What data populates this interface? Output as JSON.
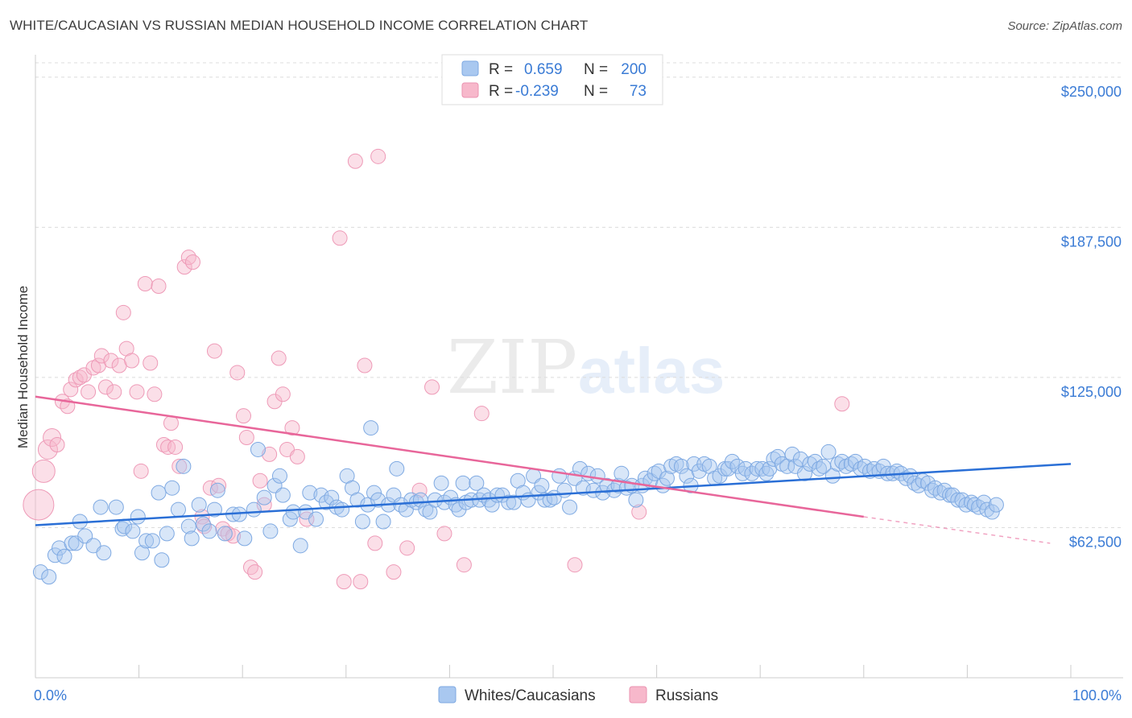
{
  "title": "WHITE/CAUCASIAN VS RUSSIAN MEDIAN HOUSEHOLD INCOME CORRELATION CHART",
  "source": "Source: ZipAtlas.com",
  "watermark": {
    "zip": "ZIP",
    "atlas": "atlas"
  },
  "colors": {
    "blue": "#3a7bd5",
    "blue_fill": "#a9c8f0",
    "blue_line": "#2a6fd6",
    "pink_fill": "#f7b8cb",
    "pink_line": "#e8669a",
    "grid": "#dcdcdc",
    "text_value": "#3a7bd5"
  },
  "legend_box": {
    "rows": [
      {
        "series": "Whites/Caucasians",
        "r_label": "R =",
        "r_value": "0.659",
        "n_label": "N =",
        "n_value": "200"
      },
      {
        "series": "Russians",
        "r_label": "R =",
        "r_value": "-0.239",
        "n_label": "N =",
        "n_value": "73"
      }
    ]
  },
  "chart_data": {
    "type": "scatter",
    "title": "WHITE/CAUCASIAN VS RUSSIAN MEDIAN HOUSEHOLD INCOME CORRELATION CHART",
    "xlabel": "",
    "ylabel": "Median Household Income",
    "xlim": [
      0,
      100
    ],
    "ylim": [
      0,
      262000
    ],
    "y_ticks": [
      {
        "value": 250000,
        "label": "$250,000"
      },
      {
        "value": 187500,
        "label": "$187,500"
      },
      {
        "value": 125000,
        "label": "$125,000"
      },
      {
        "value": 62500,
        "label": "$62,500"
      }
    ],
    "x_tick_labels": [
      {
        "value": 0,
        "label": "0.0%"
      },
      {
        "value": 100,
        "label": "100.0%"
      }
    ],
    "x_minor_ticks": [
      10,
      20,
      30,
      40,
      50,
      60,
      70,
      80,
      90,
      100
    ],
    "grid": true,
    "legend_position": "bottom-center",
    "series": [
      {
        "name": "Whites/Caucasians",
        "color": "blue",
        "trend": {
          "x0": 0,
          "y0": 63500,
          "x1": 100,
          "y1": 89000
        },
        "points": [
          [
            0.5,
            44000
          ],
          [
            1.3,
            42000
          ],
          [
            1.9,
            51000
          ],
          [
            2.3,
            54000
          ],
          [
            2.8,
            50500
          ],
          [
            3.5,
            56000
          ],
          [
            3.9,
            56000
          ],
          [
            4.3,
            65000
          ],
          [
            4.8,
            59000
          ],
          [
            5.6,
            55000
          ],
          [
            6.3,
            71000
          ],
          [
            6.6,
            52000
          ],
          [
            7.8,
            71000
          ],
          [
            8.4,
            62000
          ],
          [
            8.6,
            63000
          ],
          [
            9.4,
            61000
          ],
          [
            9.9,
            67000
          ],
          [
            10.3,
            52000
          ],
          [
            10.7,
            57000
          ],
          [
            11.3,
            57000
          ],
          [
            11.9,
            77000
          ],
          [
            12.2,
            49000
          ],
          [
            12.7,
            60000
          ],
          [
            13.2,
            79000
          ],
          [
            13.8,
            70000
          ],
          [
            14.3,
            88000
          ],
          [
            14.8,
            63000
          ],
          [
            15.1,
            58000
          ],
          [
            15.8,
            72000
          ],
          [
            16.2,
            64000
          ],
          [
            16.8,
            61000
          ],
          [
            17.3,
            70000
          ],
          [
            17.6,
            78000
          ],
          [
            18.3,
            60000
          ],
          [
            19.1,
            68000
          ],
          [
            19.7,
            68000
          ],
          [
            20.2,
            58000
          ],
          [
            21.1,
            70000
          ],
          [
            21.5,
            95000
          ],
          [
            22.1,
            75000
          ],
          [
            22.7,
            61000
          ],
          [
            23.1,
            80000
          ],
          [
            23.6,
            84000
          ],
          [
            23.9,
            76000
          ],
          [
            24.6,
            66000
          ],
          [
            24.9,
            69000
          ],
          [
            25.6,
            55000
          ],
          [
            26.1,
            69000
          ],
          [
            26.5,
            77000
          ],
          [
            27.1,
            66000
          ],
          [
            27.6,
            76000
          ],
          [
            28.1,
            73000
          ],
          [
            28.6,
            75000
          ],
          [
            29.1,
            71000
          ],
          [
            29.6,
            70000
          ],
          [
            30.1,
            84000
          ],
          [
            30.6,
            79000
          ],
          [
            31.1,
            74000
          ],
          [
            31.6,
            65000
          ],
          [
            32.1,
            72000
          ],
          [
            32.4,
            104000
          ],
          [
            32.7,
            77000
          ],
          [
            33.1,
            74000
          ],
          [
            33.6,
            65000
          ],
          [
            34.1,
            72000
          ],
          [
            34.6,
            76000
          ],
          [
            34.9,
            87000
          ],
          [
            35.3,
            72000
          ],
          [
            35.8,
            70000
          ],
          [
            36.3,
            74000
          ],
          [
            36.8,
            73000
          ],
          [
            37.2,
            74000
          ],
          [
            37.7,
            70000
          ],
          [
            38.1,
            69000
          ],
          [
            38.6,
            74000
          ],
          [
            39.2,
            81000
          ],
          [
            39.5,
            73000
          ],
          [
            40.1,
            75000
          ],
          [
            40.6,
            72000
          ],
          [
            40.9,
            70000
          ],
          [
            41.3,
            81000
          ],
          [
            41.6,
            73000
          ],
          [
            42.1,
            74000
          ],
          [
            42.6,
            81000
          ],
          [
            42.9,
            74000
          ],
          [
            43.3,
            76000
          ],
          [
            43.8,
            74000
          ],
          [
            44.1,
            72000
          ],
          [
            44.6,
            76000
          ],
          [
            45.1,
            76000
          ],
          [
            45.7,
            73000
          ],
          [
            46.2,
            73000
          ],
          [
            46.6,
            82000
          ],
          [
            47.1,
            77000
          ],
          [
            47.6,
            74000
          ],
          [
            48.1,
            84000
          ],
          [
            48.6,
            77000
          ],
          [
            48.9,
            80000
          ],
          [
            49.2,
            74000
          ],
          [
            49.7,
            74000
          ],
          [
            50.1,
            75000
          ],
          [
            50.6,
            84000
          ],
          [
            51.1,
            78000
          ],
          [
            51.6,
            71000
          ],
          [
            52.1,
            83000
          ],
          [
            52.6,
            87000
          ],
          [
            52.9,
            79000
          ],
          [
            53.4,
            85000
          ],
          [
            53.9,
            78000
          ],
          [
            54.3,
            84000
          ],
          [
            54.8,
            77000
          ],
          [
            55.2,
            80000
          ],
          [
            55.9,
            78000
          ],
          [
            56.3,
            80000
          ],
          [
            56.6,
            85000
          ],
          [
            57.1,
            79000
          ],
          [
            57.6,
            80000
          ],
          [
            58.0,
            74000
          ],
          [
            58.6,
            80000
          ],
          [
            58.9,
            83000
          ],
          [
            59.4,
            82000
          ],
          [
            59.8,
            85000
          ],
          [
            60.2,
            86000
          ],
          [
            60.6,
            80000
          ],
          [
            61.0,
            83000
          ],
          [
            61.4,
            88000
          ],
          [
            61.9,
            89000
          ],
          [
            62.4,
            88000
          ],
          [
            62.9,
            84000
          ],
          [
            63.3,
            80000
          ],
          [
            63.6,
            89000
          ],
          [
            64.1,
            86000
          ],
          [
            64.6,
            89000
          ],
          [
            65.1,
            88000
          ],
          [
            65.6,
            83000
          ],
          [
            66.1,
            84000
          ],
          [
            66.6,
            87000
          ],
          [
            66.9,
            87000
          ],
          [
            67.3,
            90000
          ],
          [
            67.8,
            88000
          ],
          [
            68.3,
            85000
          ],
          [
            68.6,
            87000
          ],
          [
            69.2,
            85000
          ],
          [
            69.7,
            87000
          ],
          [
            70.2,
            87000
          ],
          [
            70.6,
            85000
          ],
          [
            70.9,
            87000
          ],
          [
            71.3,
            91000
          ],
          [
            71.7,
            92000
          ],
          [
            72.1,
            89000
          ],
          [
            72.6,
            88000
          ],
          [
            73.1,
            93000
          ],
          [
            73.4,
            88000
          ],
          [
            73.9,
            91000
          ],
          [
            74.3,
            85000
          ],
          [
            74.8,
            89000
          ],
          [
            75.3,
            90000
          ],
          [
            75.7,
            87000
          ],
          [
            76.1,
            88000
          ],
          [
            76.6,
            94000
          ],
          [
            77.0,
            84000
          ],
          [
            77.5,
            89000
          ],
          [
            77.9,
            90000
          ],
          [
            78.3,
            88000
          ],
          [
            78.8,
            89000
          ],
          [
            79.2,
            90000
          ],
          [
            79.7,
            87000
          ],
          [
            80.1,
            88000
          ],
          [
            80.6,
            86000
          ],
          [
            81.0,
            87000
          ],
          [
            81.5,
            86000
          ],
          [
            81.9,
            88000
          ],
          [
            82.3,
            85000
          ],
          [
            82.8,
            85000
          ],
          [
            83.2,
            86000
          ],
          [
            83.6,
            85000
          ],
          [
            84.1,
            83000
          ],
          [
            84.5,
            84000
          ],
          [
            84.9,
            81000
          ],
          [
            85.3,
            80000
          ],
          [
            85.7,
            82000
          ],
          [
            86.2,
            81000
          ],
          [
            86.6,
            78000
          ],
          [
            86.9,
            79000
          ],
          [
            87.4,
            77000
          ],
          [
            87.8,
            78000
          ],
          [
            88.3,
            76000
          ],
          [
            88.6,
            76000
          ],
          [
            89.1,
            74000
          ],
          [
            89.5,
            74000
          ],
          [
            89.9,
            72000
          ],
          [
            90.4,
            73000
          ],
          [
            90.7,
            72000
          ],
          [
            91.1,
            71000
          ],
          [
            91.6,
            73000
          ],
          [
            91.9,
            70000
          ],
          [
            92.4,
            69000
          ],
          [
            92.8,
            72000
          ]
        ]
      },
      {
        "name": "Russians",
        "color": "pink",
        "trend": {
          "x0": 0,
          "y0": 117000,
          "x1": 80,
          "y1": 67000,
          "dashed_to_x": 98,
          "dashed_to_y": 56000
        },
        "points": [
          [
            0.3,
            72000
          ],
          [
            0.8,
            86000
          ],
          [
            1.2,
            95000
          ],
          [
            1.6,
            100000
          ],
          [
            2.1,
            97000
          ],
          [
            2.6,
            115000
          ],
          [
            3.1,
            113000
          ],
          [
            3.4,
            120000
          ],
          [
            3.9,
            124000
          ],
          [
            4.3,
            125000
          ],
          [
            4.7,
            126000
          ],
          [
            5.1,
            119000
          ],
          [
            5.6,
            129000
          ],
          [
            6.1,
            130000
          ],
          [
            6.4,
            134000
          ],
          [
            6.8,
            121000
          ],
          [
            7.3,
            132000
          ],
          [
            7.6,
            119000
          ],
          [
            8.1,
            130000
          ],
          [
            8.5,
            152000
          ],
          [
            8.8,
            137000
          ],
          [
            9.3,
            132000
          ],
          [
            9.8,
            119000
          ],
          [
            10.2,
            86000
          ],
          [
            10.6,
            164000
          ],
          [
            11.1,
            131000
          ],
          [
            11.5,
            118000
          ],
          [
            11.9,
            163000
          ],
          [
            12.4,
            97000
          ],
          [
            12.8,
            96000
          ],
          [
            13.1,
            106000
          ],
          [
            13.5,
            96000
          ],
          [
            13.9,
            88000
          ],
          [
            14.4,
            171000
          ],
          [
            14.8,
            175000
          ],
          [
            15.2,
            173000
          ],
          [
            16.1,
            67000
          ],
          [
            16.3,
            63000
          ],
          [
            16.9,
            79000
          ],
          [
            17.3,
            136000
          ],
          [
            17.7,
            80000
          ],
          [
            18.1,
            62000
          ],
          [
            18.6,
            60000
          ],
          [
            19.1,
            59000
          ],
          [
            19.5,
            127000
          ],
          [
            20.1,
            109000
          ],
          [
            20.4,
            100000
          ],
          [
            20.8,
            46000
          ],
          [
            21.2,
            44000
          ],
          [
            21.7,
            82000
          ],
          [
            22.1,
            72000
          ],
          [
            22.6,
            93000
          ],
          [
            23.1,
            115000
          ],
          [
            23.5,
            133000
          ],
          [
            23.9,
            118000
          ],
          [
            24.3,
            95000
          ],
          [
            24.8,
            104000
          ],
          [
            25.3,
            92000
          ],
          [
            26.2,
            66000
          ],
          [
            29.4,
            183000
          ],
          [
            29.8,
            40000
          ],
          [
            30.9,
            215000
          ],
          [
            31.4,
            40000
          ],
          [
            31.8,
            130000
          ],
          [
            32.8,
            56000
          ],
          [
            33.1,
            217000
          ],
          [
            34.6,
            44000
          ],
          [
            35.9,
            54000
          ],
          [
            37.1,
            78000
          ],
          [
            38.3,
            121000
          ],
          [
            39.5,
            60000
          ],
          [
            41.4,
            47000
          ],
          [
            43.1,
            110000
          ]
        ],
        "extra_points": [
          [
            52.1,
            47000
          ],
          [
            58.3,
            69000
          ],
          [
            77.9,
            114000
          ]
        ]
      }
    ]
  }
}
